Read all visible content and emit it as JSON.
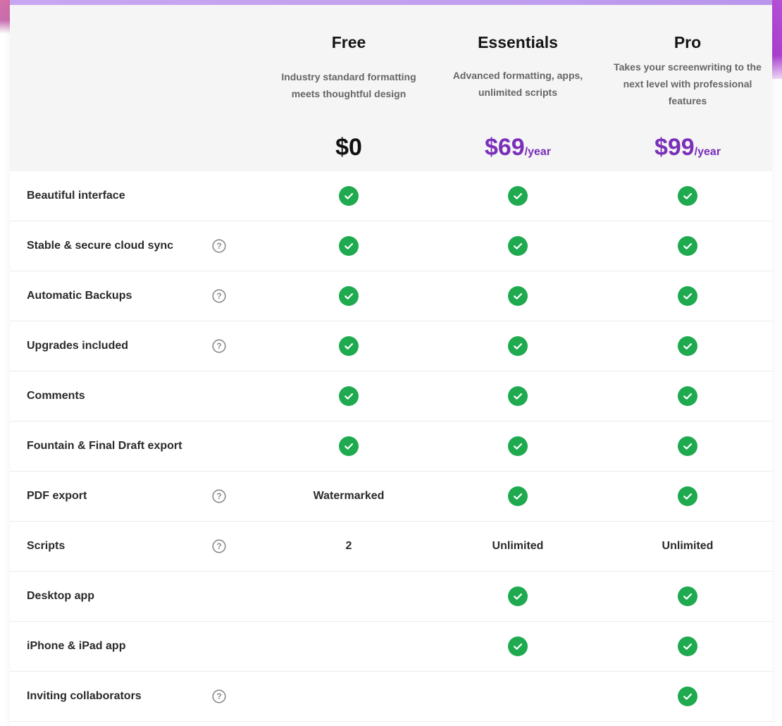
{
  "colors": {
    "accent_purple": "#7a2fb8",
    "check_green": "#1faa4f",
    "header_bg": "#f5f5f5",
    "top_strip": "#c5a2f0"
  },
  "plans": [
    {
      "name": "Free",
      "description": [
        "Industry standard formatting",
        "meets thoughtful design"
      ],
      "price": "$0",
      "price_unit": "",
      "price_color": "#111111"
    },
    {
      "name": "Essentials",
      "description": [
        "Advanced formatting, apps,",
        "unlimited scripts"
      ],
      "price": "$69",
      "price_unit": "/year",
      "price_color": "#7a2fb8"
    },
    {
      "name": "Pro",
      "description": [
        "Takes your screenwriting to the",
        "next level with professional",
        "features"
      ],
      "price": "$99",
      "price_unit": "/year",
      "price_color": "#7a2fb8"
    }
  ],
  "features": [
    {
      "label": "Beautiful interface",
      "help_icon": false,
      "values": [
        "check",
        "check",
        "check"
      ]
    },
    {
      "label": "Stable & secure cloud sync",
      "help_icon": true,
      "values": [
        "check",
        "check",
        "check"
      ]
    },
    {
      "label": "Automatic Backups",
      "help_icon": true,
      "values": [
        "check",
        "check",
        "check"
      ]
    },
    {
      "label": "Upgrades included",
      "help_icon": true,
      "values": [
        "check",
        "check",
        "check"
      ]
    },
    {
      "label": "Comments",
      "help_icon": false,
      "values": [
        "check",
        "check",
        "check"
      ]
    },
    {
      "label": "Fountain & Final Draft export",
      "help_icon": false,
      "values": [
        "check",
        "check",
        "check"
      ]
    },
    {
      "label": "PDF export",
      "help_icon": true,
      "values": [
        "Watermarked",
        "check",
        "check"
      ]
    },
    {
      "label": "Scripts",
      "help_icon": true,
      "values": [
        "2",
        "Unlimited",
        "Unlimited"
      ]
    },
    {
      "label": "Desktop app",
      "help_icon": false,
      "values": [
        "",
        "check",
        "check"
      ]
    },
    {
      "label": "iPhone & iPad app",
      "help_icon": false,
      "values": [
        "",
        "check",
        "check"
      ]
    },
    {
      "label": "Inviting collaborators",
      "help_icon": true,
      "values": [
        "",
        "",
        "check"
      ]
    }
  ],
  "icons": {
    "check": "check-circle-icon",
    "help": "question-circle-icon"
  }
}
